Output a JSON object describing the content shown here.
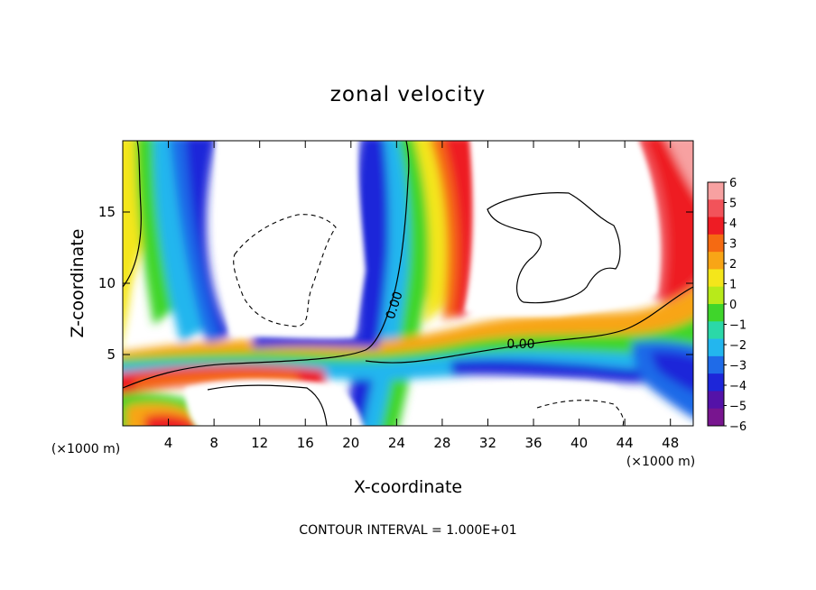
{
  "chart_data": {
    "type": "heatmap",
    "title": "zonal velocity",
    "xlabel": "X-coordinate",
    "ylabel": "Z-coordinate",
    "x_unit_label_left": "(×1000 m)",
    "x_unit_label_right": "(×1000 m)",
    "xlim": [
      0,
      50
    ],
    "ylim": [
      0,
      20
    ],
    "x_ticks": [
      4,
      8,
      12,
      16,
      20,
      24,
      28,
      32,
      36,
      40,
      44,
      48
    ],
    "y_ticks": [
      5,
      10,
      15
    ],
    "colorbar": {
      "levels": [
        6,
        5,
        4,
        3,
        2,
        1,
        0,
        -1,
        -2,
        -3,
        -4,
        -5,
        -6
      ],
      "colors": [
        "#f7a1a1",
        "#f2535a",
        "#ee1c24",
        "#f56a12",
        "#f8a516",
        "#f4e61b",
        "#b8ea1a",
        "#3fd52b",
        "#2bd8a8",
        "#23b6ee",
        "#1f6be8",
        "#1d26d9",
        "#5412a8",
        "#78158f"
      ]
    },
    "contour_labels": [
      "0.00",
      "0.00"
    ],
    "footer": "CONTOUR INTERVAL = 1.000E+01"
  }
}
